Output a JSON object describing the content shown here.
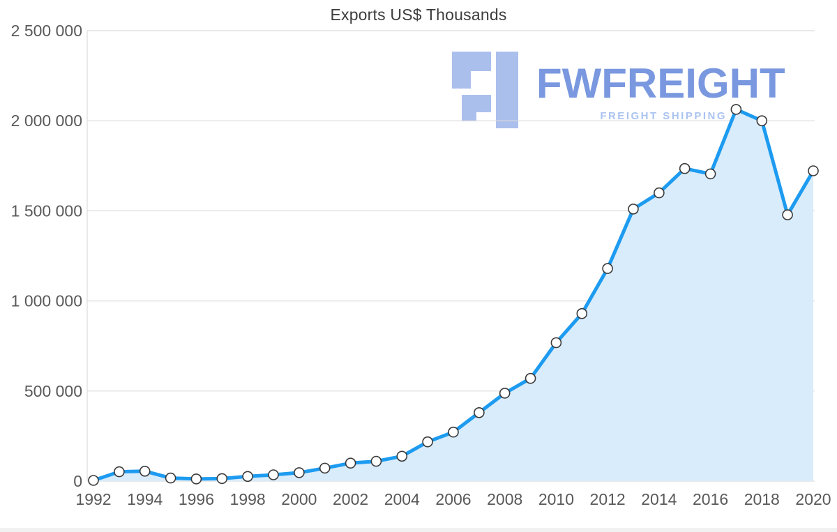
{
  "page": {
    "background": "#ffffff"
  },
  "chart_data": {
    "type": "line",
    "title": "Exports US$ Thousands",
    "xlabel": "",
    "ylabel": "",
    "x": [
      1992,
      1993,
      1994,
      1995,
      1996,
      1997,
      1998,
      1999,
      2000,
      2001,
      2002,
      2003,
      2004,
      2005,
      2006,
      2007,
      2008,
      2009,
      2010,
      2011,
      2012,
      2013,
      2014,
      2015,
      2016,
      2017,
      2018,
      2019,
      2020
    ],
    "values": [
      4000,
      52000,
      55000,
      17000,
      12000,
      14000,
      26000,
      35000,
      47000,
      72000,
      100000,
      110000,
      138000,
      218000,
      272000,
      380000,
      488000,
      570000,
      768000,
      930000,
      1180000,
      1510000,
      1600000,
      1735000,
      1705000,
      2063000,
      2000000,
      1478000,
      1722000
    ],
    "ylim": [
      0,
      2500000
    ],
    "ytick_interval": 500000,
    "yticks": [
      "0",
      "500 000",
      "1 000 000",
      "1 500 000",
      "2 000 000",
      "2 500 000"
    ],
    "xtick_interval": 2,
    "xticks": [
      1992,
      1994,
      1996,
      1998,
      2000,
      2002,
      2004,
      2006,
      2008,
      2010,
      2012,
      2014,
      2016,
      2018,
      2020
    ],
    "grid": true,
    "legend": "none",
    "area_under_line": true,
    "line_color": "#1d9bf0",
    "area_fill": "#d9ecfb",
    "marker_fill": "#ffffff",
    "marker_stroke": "#3a3a3a",
    "gridline_color": "#dcdcdc",
    "tick_label_color": "#595959",
    "title_color": "#3d3d3d"
  },
  "watermark": {
    "brand": "FWFREIGHT",
    "tagline": "FREIGHT SHIPPING",
    "logo_icon": "fwfreight-f-logo",
    "brand_color": "#6c8ddc",
    "tagline_color": "#aac3f0",
    "logo_color": "#9db4ea"
  }
}
